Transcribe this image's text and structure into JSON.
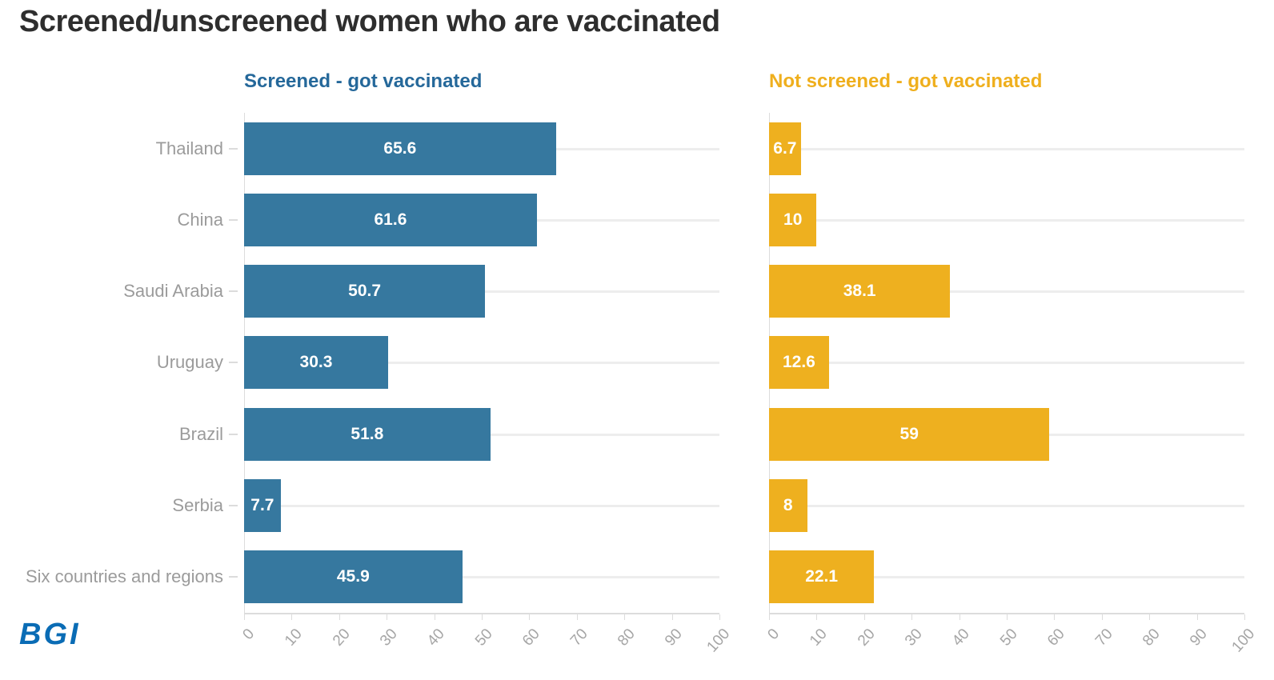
{
  "title": "Screened/unscreened women who are vaccinated",
  "logo_text": "BGI",
  "colors": {
    "title": "#2e2e2e",
    "category_label": "#9b9b9b",
    "tick_label": "#a6a6a6",
    "row_rule": "#ededed",
    "axis_line": "#dcdcdc",
    "value_label": "#ffffff",
    "logo": "#0a6cb5"
  },
  "chart_data": {
    "type": "bar",
    "orientation": "horizontal",
    "title": "Screened/unscreened women who are vaccinated",
    "categories": [
      "Thailand",
      "China",
      "Saudi Arabia",
      "Uruguay",
      "Brazil",
      "Serbia",
      "Six countries and regions"
    ],
    "series": [
      {
        "name": "Screened - got vaccinated",
        "color": "#36789f",
        "header_color": "#25689a",
        "values": [
          65.6,
          61.6,
          50.7,
          30.3,
          51.8,
          7.7,
          45.9
        ]
      },
      {
        "name": "Not screened - got vaccinated",
        "color": "#eeb01f",
        "header_color": "#efaf1d",
        "values": [
          6.7,
          10,
          38.1,
          12.6,
          59,
          8,
          22.1
        ]
      }
    ],
    "xlim": [
      0,
      100
    ],
    "xticks": [
      0,
      10,
      20,
      30,
      40,
      50,
      60,
      70,
      80,
      90,
      100
    ],
    "grid": "horizontal-row-rules",
    "legend_position": "column-headers",
    "value_labels": "inside-bar-white-bold"
  }
}
